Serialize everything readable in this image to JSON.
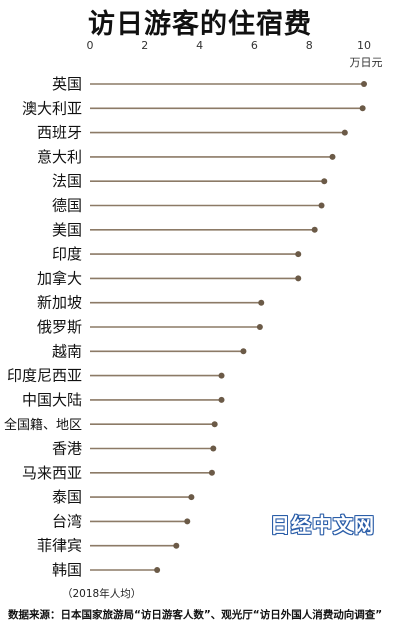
{
  "title": "访日游客的住宿费",
  "note": "（2018年人均）",
  "source": "数据来源：日本国家旅游局“访日游客人数”、观光厅“访日外国人消费动向调查”",
  "watermark": "日经中文网",
  "colors": {
    "line": "#8c7a66",
    "dot": "#6b5a47",
    "axis": "#999999"
  },
  "chart_data": {
    "type": "bar",
    "orientation": "horizontal",
    "style": "lollipop",
    "title": "访日游客的住宿费",
    "unit": "万日元",
    "xlim": [
      0,
      10
    ],
    "xticks": [
      0,
      2,
      4,
      6,
      8,
      10
    ],
    "categories": [
      "英国",
      "澳大利亚",
      "西班牙",
      "意大利",
      "法国",
      "德国",
      "美国",
      "印度",
      "加拿大",
      "新加坡",
      "俄罗斯",
      "越南",
      "印度尼西亚",
      "中国大陆",
      "全国籍、地区",
      "香港",
      "马来西亚",
      "泰国",
      "台湾",
      "菲律宾",
      "韩国"
    ],
    "values": [
      10.0,
      9.95,
      9.3,
      8.85,
      8.55,
      8.45,
      8.2,
      7.6,
      7.6,
      6.25,
      6.2,
      5.6,
      4.8,
      4.8,
      4.55,
      4.5,
      4.45,
      3.7,
      3.55,
      3.15,
      2.45
    ]
  }
}
